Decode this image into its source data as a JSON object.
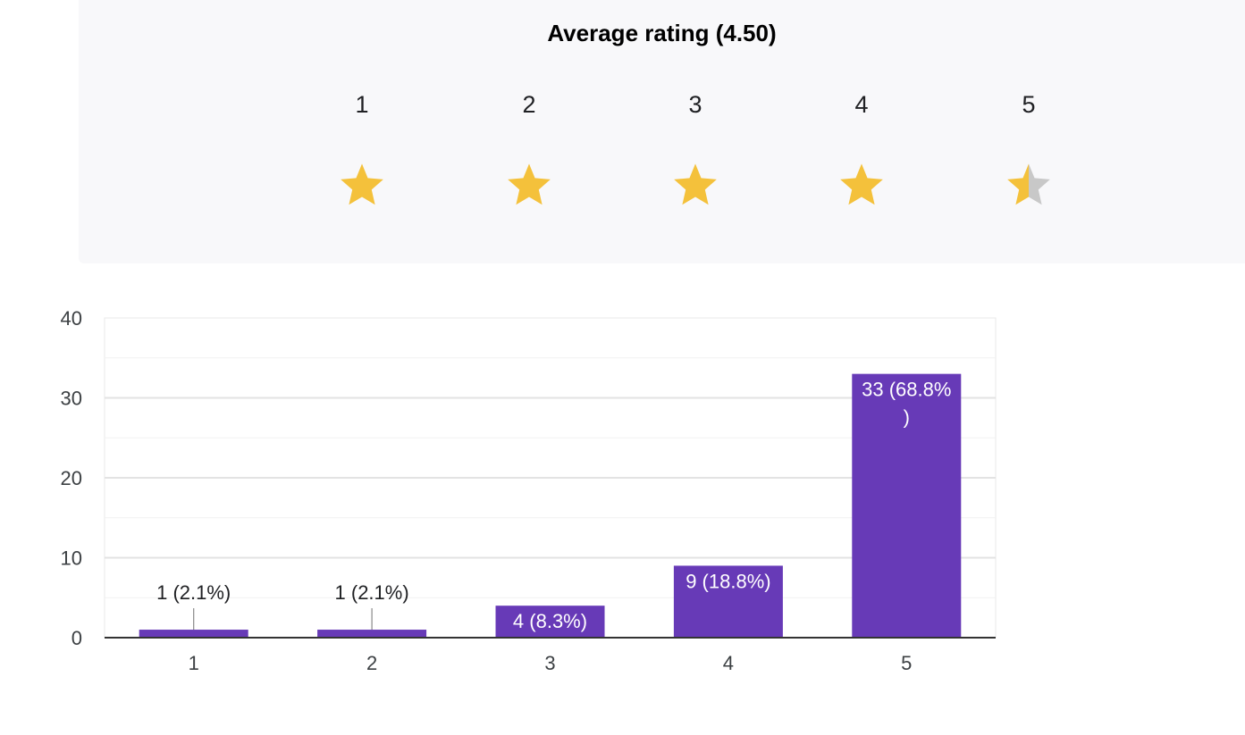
{
  "rating": {
    "title": "Average rating (4.50)",
    "average": 4.5,
    "scale": [
      "1",
      "2",
      "3",
      "4",
      "5"
    ],
    "star_color": "#f4c13b",
    "empty_star_color": "#c8c8c8"
  },
  "chart_data": {
    "type": "bar",
    "categories": [
      "1",
      "2",
      "3",
      "4",
      "5"
    ],
    "values": [
      1,
      1,
      4,
      9,
      33
    ],
    "data_labels": [
      "1 (2.1%)",
      "1 (2.1%)",
      "4 (8.3%)",
      "9 (18.8%)",
      "33 (68.8%\n)"
    ],
    "y_ticks": [
      "0",
      "10",
      "20",
      "30",
      "40"
    ],
    "ylim": [
      0,
      40
    ],
    "grid": true,
    "bar_color": "#673ab7",
    "title": "",
    "xlabel": "",
    "ylabel": ""
  }
}
